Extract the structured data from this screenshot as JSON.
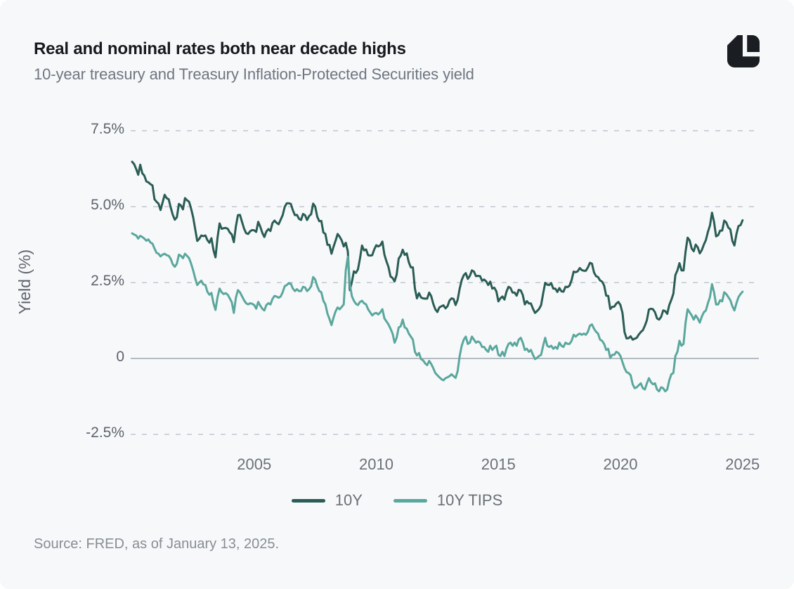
{
  "header": {
    "title": "Real and nominal rates both near decade highs",
    "subtitle": "10-year treasury and Treasury Inflation-Protected Securities yield"
  },
  "footer": {
    "source": "Source: FRED, as of January 13, 2025."
  },
  "colors": {
    "background": "#f7f8fa",
    "series_10y": "#2a5d55",
    "series_10y_tips": "#5aa79d",
    "gridline": "#cdd3da",
    "zero_line": "#b5bbc3",
    "logo": "#1a1d22"
  },
  "legend": {
    "items": [
      {
        "label": "10Y",
        "color": "#2a5d55"
      },
      {
        "label": "10Y TIPS",
        "color": "#5aa79d"
      }
    ]
  },
  "chart_data": {
    "type": "line",
    "title": "Real and nominal rates both near decade highs",
    "subtitle": "10-year treasury and Treasury Inflation-Protected Securities yield",
    "xlabel": "",
    "ylabel": "Yield (%)",
    "grid": "horizontal-dashed",
    "legend_position": "bottom-center",
    "xlim": [
      2000,
      2025.7
    ],
    "ylim": [
      -3.2,
      8.3
    ],
    "x_ticks": [
      2005,
      2010,
      2015,
      2020,
      2025
    ],
    "x_tick_labels": [
      "2005",
      "2010",
      "2015",
      "2020",
      "2025"
    ],
    "y_ticks": [
      7.5,
      5.0,
      2.5,
      0,
      -2.5
    ],
    "y_tick_labels": [
      "7.5%",
      "5.0%",
      "2.5%",
      "0",
      "-2.5%"
    ],
    "x_start": 2000.0,
    "points_per_year": 12,
    "series": [
      {
        "name": "10Y",
        "color": "#2a5d55",
        "values": [
          6.48,
          6.4,
          6.24,
          6.05,
          6.38,
          6.1,
          6.02,
          5.83,
          5.8,
          5.74,
          5.7,
          5.24,
          5.16,
          5.1,
          4.89,
          5.14,
          5.39,
          5.28,
          5.24,
          4.97,
          4.73,
          4.57,
          4.65,
          5.09,
          5.04,
          4.91,
          5.28,
          5.21,
          5.16,
          4.93,
          4.65,
          4.26,
          3.87,
          3.94,
          4.05,
          4.03,
          4.05,
          3.9,
          3.81,
          3.96,
          3.57,
          3.33,
          3.98,
          4.45,
          4.27,
          4.29,
          4.3,
          4.27,
          4.15,
          4.08,
          3.83,
          4.35,
          4.72,
          4.73,
          4.5,
          4.28,
          4.13,
          4.1,
          4.19,
          4.23,
          4.22,
          4.17,
          4.5,
          4.34,
          4.14,
          4.0,
          4.18,
          4.26,
          4.2,
          4.46,
          4.54,
          4.47,
          4.42,
          4.57,
          4.72,
          4.99,
          5.11,
          5.11,
          5.09,
          4.88,
          4.72,
          4.73,
          4.6,
          4.56,
          4.76,
          4.72,
          4.56,
          4.69,
          4.75,
          5.1,
          5.0,
          4.67,
          4.52,
          4.53,
          4.15,
          4.1,
          3.74,
          3.74,
          3.45,
          3.68,
          3.88,
          4.1,
          4.01,
          3.89,
          3.69,
          3.81,
          3.53,
          2.25,
          2.52,
          2.87,
          2.82,
          2.93,
          3.29,
          3.72,
          3.56,
          3.59,
          3.4,
          3.39,
          3.4,
          3.59,
          3.73,
          3.69,
          3.73,
          3.85,
          3.42,
          3.2,
          3.01,
          2.7,
          2.65,
          2.54,
          2.76,
          3.29,
          3.39,
          3.58,
          3.41,
          3.46,
          3.17,
          3.0,
          3.0,
          2.3,
          1.98,
          2.15,
          2.01,
          1.98,
          1.97,
          1.97,
          2.17,
          2.05,
          1.8,
          1.62,
          1.53,
          1.68,
          1.72,
          1.75,
          1.65,
          1.72,
          1.91,
          1.98,
          1.96,
          1.76,
          1.93,
          2.3,
          2.58,
          2.74,
          2.81,
          2.62,
          2.72,
          2.9,
          2.86,
          2.71,
          2.72,
          2.71,
          2.56,
          2.6,
          2.54,
          2.42,
          2.53,
          2.3,
          2.33,
          2.21,
          1.88,
          1.98,
          2.04,
          1.94,
          2.2,
          2.36,
          2.32,
          2.17,
          2.17,
          2.07,
          2.26,
          2.24,
          2.09,
          1.78,
          1.89,
          1.81,
          1.81,
          1.64,
          1.5,
          1.56,
          1.63,
          1.76,
          2.14,
          2.49,
          2.43,
          2.42,
          2.48,
          2.3,
          2.3,
          2.19,
          2.32,
          2.21,
          2.2,
          2.36,
          2.35,
          2.4,
          2.58,
          2.86,
          2.84,
          2.87,
          2.98,
          2.91,
          2.89,
          2.89,
          3.0,
          3.15,
          3.12,
          2.83,
          2.71,
          2.68,
          2.57,
          2.53,
          2.4,
          2.07,
          2.06,
          1.63,
          1.7,
          1.71,
          1.81,
          1.86,
          1.76,
          1.5,
          0.87,
          0.66,
          0.67,
          0.73,
          0.62,
          0.65,
          0.68,
          0.79,
          0.87,
          0.93,
          1.08,
          1.26,
          1.61,
          1.64,
          1.62,
          1.52,
          1.32,
          1.28,
          1.37,
          1.58,
          1.56,
          1.47,
          1.76,
          1.93,
          2.13,
          2.75,
          2.9,
          3.14,
          2.9,
          2.9,
          3.52,
          3.98,
          3.89,
          3.62,
          3.53,
          3.75,
          3.66,
          3.46,
          3.57,
          3.75,
          3.9,
          4.17,
          4.38,
          4.8,
          4.5,
          4.02,
          4.06,
          4.21,
          4.21,
          4.54,
          4.48,
          4.31,
          4.25,
          3.87,
          3.72,
          4.1,
          4.36,
          4.39,
          4.55
        ]
      },
      {
        "name": "10Y TIPS",
        "color": "#5aa79d",
        "values": [
          4.12,
          4.08,
          4.05,
          3.95,
          4.04,
          4.0,
          3.95,
          3.88,
          3.92,
          3.82,
          3.78,
          3.62,
          3.48,
          3.45,
          3.36,
          3.42,
          3.45,
          3.4,
          3.38,
          3.28,
          3.1,
          3.02,
          3.12,
          3.42,
          3.38,
          3.3,
          3.45,
          3.38,
          3.3,
          3.12,
          2.9,
          2.64,
          2.42,
          2.5,
          2.56,
          2.44,
          2.42,
          2.2,
          2.1,
          2.16,
          1.82,
          1.6,
          2.02,
          2.3,
          2.18,
          2.12,
          2.15,
          2.1,
          1.98,
          1.85,
          1.5,
          2.0,
          2.25,
          2.18,
          2.05,
          1.92,
          1.82,
          1.78,
          1.82,
          1.8,
          1.76,
          1.64,
          1.86,
          1.74,
          1.64,
          1.58,
          1.76,
          1.82,
          1.78,
          1.96,
          2.06,
          2.04,
          2.0,
          2.04,
          2.18,
          2.38,
          2.42,
          2.48,
          2.46,
          2.3,
          2.22,
          2.28,
          2.22,
          2.22,
          2.36,
          2.34,
          2.22,
          2.28,
          2.38,
          2.68,
          2.6,
          2.38,
          2.22,
          2.18,
          1.9,
          1.78,
          1.48,
          1.3,
          1.1,
          1.35,
          1.55,
          1.68,
          1.62,
          1.7,
          1.78,
          2.9,
          3.35,
          2.45,
          2.05,
          1.9,
          1.8,
          1.76,
          1.86,
          1.9,
          1.82,
          1.78,
          1.62,
          1.52,
          1.42,
          1.48,
          1.5,
          1.45,
          1.52,
          1.62,
          1.32,
          1.22,
          1.12,
          0.98,
          0.82,
          0.52,
          0.68,
          1.02,
          1.06,
          1.28,
          1.02,
          0.98,
          0.82,
          0.72,
          0.62,
          0.22,
          0.1,
          0.18,
          -0.02,
          -0.06,
          -0.16,
          -0.22,
          -0.08,
          -0.18,
          -0.32,
          -0.48,
          -0.55,
          -0.62,
          -0.68,
          -0.72,
          -0.65,
          -0.62,
          -0.58,
          -0.52,
          -0.58,
          -0.64,
          -0.42,
          0.08,
          0.42,
          0.62,
          0.72,
          0.48,
          0.52,
          0.72,
          0.62,
          0.52,
          0.56,
          0.52,
          0.38,
          0.38,
          0.28,
          0.22,
          0.42,
          0.28,
          0.36,
          0.42,
          0.12,
          0.08,
          0.22,
          0.08,
          0.32,
          0.48,
          0.52,
          0.42,
          0.52,
          0.42,
          0.62,
          0.68,
          0.52,
          0.28,
          0.32,
          0.22,
          0.28,
          0.12,
          -0.02,
          0.02,
          0.08,
          0.12,
          0.42,
          0.68,
          0.42,
          0.38,
          0.42,
          0.32,
          0.38,
          0.32,
          0.52,
          0.42,
          0.38,
          0.52,
          0.48,
          0.48,
          0.58,
          0.78,
          0.72,
          0.78,
          0.82,
          0.78,
          0.82,
          0.78,
          0.88,
          1.08,
          1.12,
          0.98,
          0.88,
          0.82,
          0.62,
          0.58,
          0.48,
          0.28,
          0.32,
          0.02,
          0.12,
          0.12,
          0.22,
          0.18,
          0.08,
          -0.12,
          -0.32,
          -0.45,
          -0.48,
          -0.55,
          -0.85,
          -0.98,
          -0.95,
          -0.88,
          -0.82,
          -0.98,
          -1.02,
          -0.82,
          -0.65,
          -0.78,
          -0.85,
          -0.82,
          -1.02,
          -1.08,
          -0.95,
          -0.98,
          -1.08,
          -1.02,
          -0.72,
          -0.52,
          -0.48,
          0.08,
          0.22,
          0.58,
          0.42,
          0.48,
          1.18,
          1.62,
          1.52,
          1.42,
          1.28,
          1.42,
          1.32,
          1.18,
          1.38,
          1.52,
          1.58,
          1.82,
          2.02,
          2.45,
          2.18,
          1.78,
          1.78,
          1.92,
          1.88,
          2.18,
          2.12,
          2.02,
          1.92,
          1.72,
          1.58,
          1.82,
          2.02,
          2.12,
          2.2
        ]
      }
    ]
  }
}
